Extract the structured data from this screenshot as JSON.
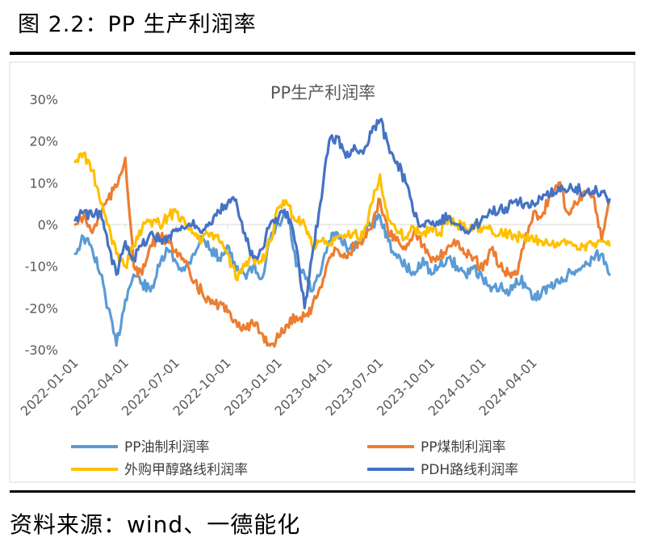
{
  "figure": {
    "title": "图 2.2：PP 生产利润率",
    "source": "资料来源：wind、一德能化"
  },
  "chart_data": {
    "type": "line",
    "title": "PP生产利润率",
    "xlabel": "",
    "ylabel": "",
    "ylim": [
      -0.3,
      0.3
    ],
    "yticks": [
      -0.3,
      -0.2,
      -0.1,
      0,
      0.1,
      0.2,
      0.3
    ],
    "ytick_labels": [
      "-30%",
      "-20%",
      "-10%",
      "0%",
      "10%",
      "20%",
      "30%"
    ],
    "xlim": [
      "2022-01-01",
      "2024-08-15"
    ],
    "xtick_labels": [
      "2022-01-01",
      "2022-04-01",
      "2022-07-01",
      "2022-10-01",
      "2023-01-01",
      "2023-04-01",
      "2023-07-01",
      "2023-10-01",
      "2024-01-01",
      "2024-04-01"
    ],
    "gridlines": "none",
    "legend_position": "bottom",
    "x": [
      "2022-01-01",
      "2022-01-16",
      "2022-02-01",
      "2022-02-16",
      "2022-03-01",
      "2022-03-16",
      "2022-04-01",
      "2022-04-16",
      "2022-05-01",
      "2022-05-16",
      "2022-06-01",
      "2022-06-16",
      "2022-07-01",
      "2022-07-16",
      "2022-08-01",
      "2022-08-16",
      "2022-09-01",
      "2022-09-16",
      "2022-10-01",
      "2022-10-16",
      "2022-11-01",
      "2022-11-16",
      "2022-12-01",
      "2022-12-16",
      "2023-01-01",
      "2023-01-16",
      "2023-02-01",
      "2023-02-16",
      "2023-03-01",
      "2023-03-16",
      "2023-04-01",
      "2023-04-16",
      "2023-05-01",
      "2023-05-16",
      "2023-06-01",
      "2023-06-16",
      "2023-07-01",
      "2023-07-16",
      "2023-08-01",
      "2023-08-16",
      "2023-09-01",
      "2023-09-16",
      "2023-10-01",
      "2023-10-16",
      "2023-11-01",
      "2023-11-16",
      "2023-12-01",
      "2023-12-16",
      "2024-01-01",
      "2024-01-16",
      "2024-02-01",
      "2024-02-16",
      "2024-03-01",
      "2024-03-16",
      "2024-04-01",
      "2024-04-16",
      "2024-05-01",
      "2024-05-16",
      "2024-06-01",
      "2024-06-16",
      "2024-07-01",
      "2024-07-16",
      "2024-08-01",
      "2024-08-15"
    ],
    "series": [
      {
        "name": "PP油制利润率",
        "color": "#5B9BD5",
        "values": [
          -0.07,
          -0.03,
          -0.06,
          -0.12,
          -0.2,
          -0.29,
          -0.18,
          -0.12,
          -0.14,
          -0.16,
          -0.1,
          -0.06,
          -0.09,
          -0.11,
          -0.07,
          -0.03,
          -0.06,
          -0.08,
          -0.05,
          -0.11,
          -0.12,
          -0.1,
          -0.13,
          -0.04,
          0.0,
          0.03,
          -0.1,
          -0.12,
          -0.16,
          -0.12,
          -0.04,
          -0.02,
          -0.05,
          -0.06,
          -0.02,
          0.0,
          0.02,
          -0.04,
          -0.08,
          -0.1,
          -0.12,
          -0.08,
          -0.12,
          -0.1,
          -0.08,
          -0.1,
          -0.12,
          -0.1,
          -0.13,
          -0.16,
          -0.15,
          -0.17,
          -0.13,
          -0.14,
          -0.18,
          -0.16,
          -0.15,
          -0.14,
          -0.12,
          -0.11,
          -0.1,
          -0.08,
          -0.07,
          -0.12
        ]
      },
      {
        "name": "PP煤制利润率",
        "color": "#ED7D31",
        "values": [
          0.0,
          0.02,
          -0.02,
          0.03,
          0.06,
          0.09,
          0.16,
          -0.1,
          -0.12,
          -0.05,
          -0.03,
          -0.04,
          -0.06,
          -0.09,
          -0.14,
          -0.16,
          -0.19,
          -0.19,
          -0.21,
          -0.23,
          -0.25,
          -0.24,
          -0.26,
          -0.29,
          -0.27,
          -0.24,
          -0.22,
          -0.22,
          -0.2,
          -0.15,
          -0.08,
          -0.06,
          -0.08,
          -0.05,
          -0.04,
          -0.01,
          0.06,
          -0.02,
          -0.03,
          -0.06,
          -0.01,
          -0.05,
          -0.09,
          -0.08,
          -0.05,
          -0.04,
          -0.07,
          -0.08,
          -0.11,
          -0.06,
          -0.1,
          -0.12,
          -0.12,
          -0.04,
          0.03,
          0.02,
          0.07,
          0.1,
          0.03,
          0.05,
          0.08,
          0.07,
          -0.04,
          0.06
        ]
      },
      {
        "name": "外购甲醇路线利润率",
        "color": "#FFC000",
        "values": [
          0.15,
          0.17,
          0.13,
          0.05,
          0.0,
          -0.07,
          -0.1,
          -0.05,
          -0.01,
          0.01,
          0.0,
          0.02,
          0.03,
          0.01,
          -0.02,
          -0.04,
          -0.02,
          -0.04,
          -0.07,
          -0.13,
          -0.1,
          -0.08,
          -0.09,
          -0.04,
          0.04,
          0.05,
          0.01,
          0.0,
          -0.05,
          -0.04,
          -0.05,
          -0.03,
          -0.03,
          -0.02,
          -0.03,
          0.05,
          0.12,
          0.01,
          -0.02,
          -0.03,
          -0.01,
          -0.02,
          -0.01,
          -0.02,
          0.01,
          0.0,
          -0.01,
          0.0,
          -0.01,
          -0.01,
          -0.02,
          -0.02,
          -0.03,
          -0.03,
          -0.04,
          -0.04,
          -0.05,
          -0.05,
          -0.04,
          -0.05,
          -0.05,
          -0.05,
          -0.04,
          -0.05
        ]
      },
      {
        "name": "PDH路线利润率",
        "color": "#4472C4",
        "values": [
          0.01,
          0.03,
          0.02,
          0.03,
          -0.05,
          -0.12,
          -0.04,
          -0.08,
          -0.05,
          -0.02,
          -0.04,
          -0.03,
          -0.01,
          -0.01,
          0.01,
          -0.02,
          0.0,
          0.03,
          0.05,
          0.06,
          -0.02,
          -0.08,
          -0.06,
          0.0,
          0.02,
          0.03,
          -0.05,
          -0.2,
          -0.08,
          0.05,
          0.2,
          0.21,
          0.16,
          0.19,
          0.17,
          0.22,
          0.25,
          0.19,
          0.15,
          0.1,
          0.02,
          0.0,
          0.0,
          0.01,
          0.02,
          0.0,
          -0.02,
          -0.01,
          0.02,
          0.03,
          0.04,
          0.04,
          0.06,
          0.05,
          0.05,
          0.06,
          0.07,
          0.09,
          0.08,
          0.09,
          0.07,
          0.08,
          0.08,
          0.06
        ]
      }
    ]
  }
}
